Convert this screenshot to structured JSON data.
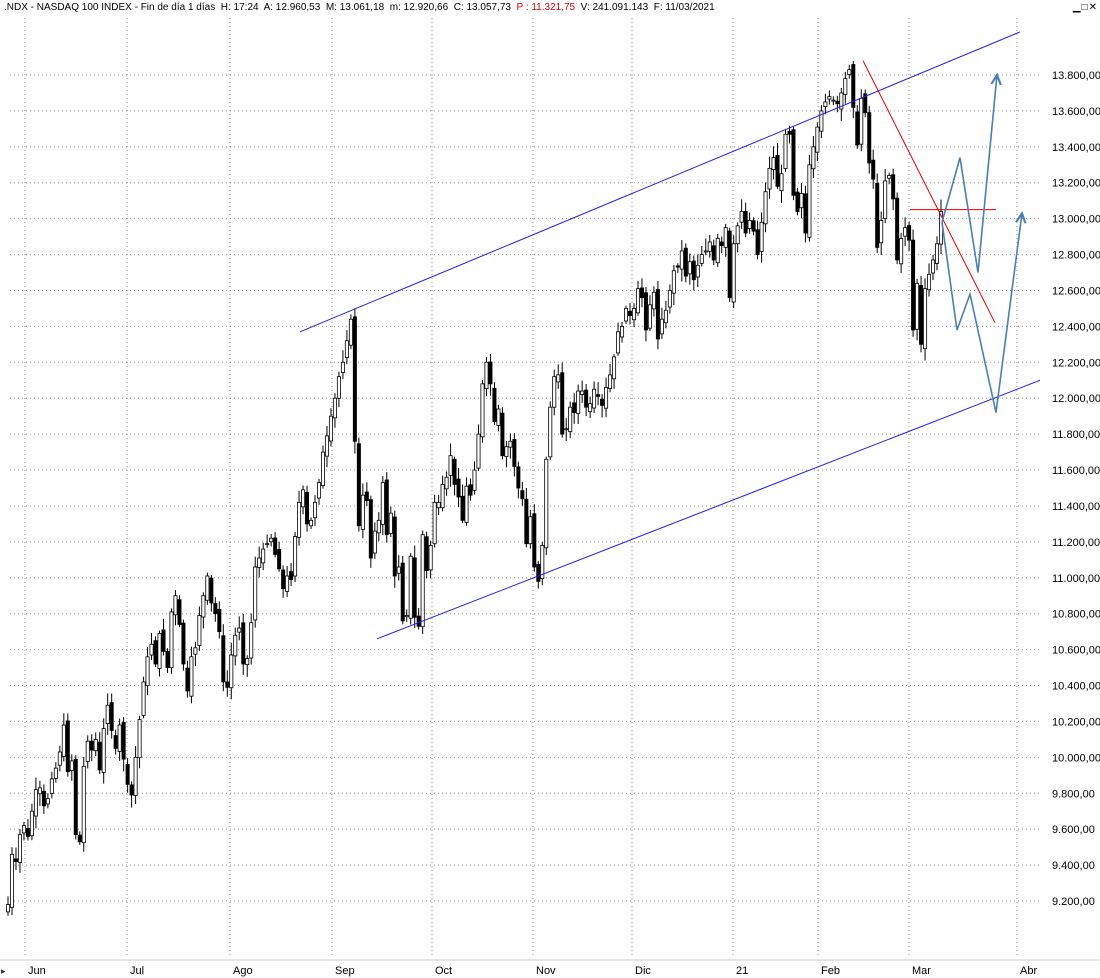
{
  "window": {
    "title_prefix": ".NDX - NASDAQ 100 INDEX - Fin de día 1 días",
    "fields": [
      {
        "label": "H:",
        "value": "17:24"
      },
      {
        "label": "A:",
        "value": "12.960,53"
      },
      {
        "label": "M:",
        "value": "13.061,18"
      },
      {
        "label": "m:",
        "value": "12.920,66"
      },
      {
        "label": "C:",
        "value": "13.057,73"
      },
      {
        "label": "P :",
        "value": "11.321,75",
        "color": "#e00000"
      },
      {
        "label": "V:",
        "value": "241.091.143"
      },
      {
        "label": "F:",
        "value": "11/03/2021"
      }
    ],
    "buttons": [
      "minimize-icon",
      "maximize-icon",
      "close-icon"
    ],
    "bottom_marker": "▸"
  },
  "chart_data": {
    "type": "candlestick",
    "title": "",
    "y_ticks": [
      "13.800,00",
      "13.600,00",
      "13.400,00",
      "13.200,00",
      "13.000,00",
      "12.800,00",
      "12.600,00",
      "12.400,00",
      "12.200,00",
      "12.000,00",
      "11.800,00",
      "11.600,00",
      "11.400,00",
      "11.200,00",
      "11.000,00",
      "10.800,00",
      "10.600,00",
      "10.400,00",
      "10.200,00",
      "10.000,00",
      "9.800,00",
      "9.600,00",
      "9.400,00",
      "9.200,00"
    ],
    "ylim": [
      9100,
      14100
    ],
    "x_ticks": [
      "Jun",
      "Jul",
      "Ago",
      "Sep",
      "Oct",
      "Nov",
      "Dic",
      "21",
      "Feb",
      "Mar",
      "Abr"
    ],
    "grid": true,
    "colors": {
      "channel": "#2020e0",
      "resistance": "#e00000",
      "projection": "#4a7fb0",
      "up": "#ffffff",
      "down": "#000000"
    },
    "closes": [
      9180,
      9460,
      9420,
      9570,
      9620,
      9560,
      9700,
      9820,
      9830,
      9730,
      9770,
      9880,
      9940,
      10030,
      10180,
      9920,
      9980,
      9570,
      9530,
      9950,
      10090,
      10040,
      10100,
      9930,
      10160,
      10290,
      10150,
      10050,
      10180,
      9990,
      9850,
      9790,
      10000,
      10210,
      10420,
      10560,
      10630,
      10520,
      10690,
      10590,
      10500,
      10810,
      10900,
      10740,
      10520,
      10370,
      10560,
      10610,
      10790,
      10900,
      11010,
      10860,
      10800,
      10700,
      10420,
      10390,
      10570,
      10680,
      10720,
      10520,
      10550,
      10750,
      11060,
      11110,
      11160,
      11190,
      11220,
      11130,
      11050,
      10940,
      11010,
      10990,
      11230,
      11420,
      11490,
      11300,
      11320,
      11420,
      11530,
      11700,
      11790,
      11900,
      12000,
      12120,
      12200,
      12320,
      12440,
      11760,
      11290,
      11460,
      11430,
      11110,
      11260,
      11320,
      11530,
      11240,
      11360,
      11010,
      11060,
      10760,
      10790,
      11120,
      10780,
      10730,
      11240,
      11040,
      11180,
      11420,
      11420,
      11520,
      11560,
      11680,
      11520,
      11450,
      11320,
      11510,
      11460,
      11600,
      11800,
      12080,
      12200,
      12080,
      11870,
      11940,
      11680,
      11730,
      11760,
      11620,
      11500,
      11440,
      11190,
      11340,
      11060,
      10980,
      11180,
      11660,
      11950,
      12120,
      12130,
      11800,
      11830,
      11950,
      11920,
      12040,
      12040,
      11950,
      11970,
      12050,
      12010,
      11960,
      12060,
      12130,
      12230,
      12370,
      12400,
      12500,
      12460,
      12500,
      12610,
      12560,
      12380,
      12520,
      12590,
      12330,
      12440,
      12490,
      12600,
      12710,
      12730,
      12820,
      12680,
      12760,
      12660,
      12740,
      12800,
      12820,
      12870,
      12770,
      12890,
      12850,
      12950,
      12560,
      12860,
      12960,
      13040,
      12920,
      12990,
      12930,
      12800,
      12980,
      13150,
      13280,
      13340,
      13180,
      13250,
      13470,
      13470,
      13130,
      13040,
      13140,
      12920,
      13300,
      13400,
      13510,
      13600,
      13650,
      13680,
      13660,
      13640,
      13700,
      13780,
      13830,
      13620,
      13410,
      13670,
      13590,
      13310,
      13220,
      12840,
      12990,
      13210,
      13240,
      13110,
      12770,
      12890,
      12950,
      12880,
      12380,
      12640,
      12300,
      12610,
      12690,
      12770,
      12860,
      13040
    ]
  }
}
